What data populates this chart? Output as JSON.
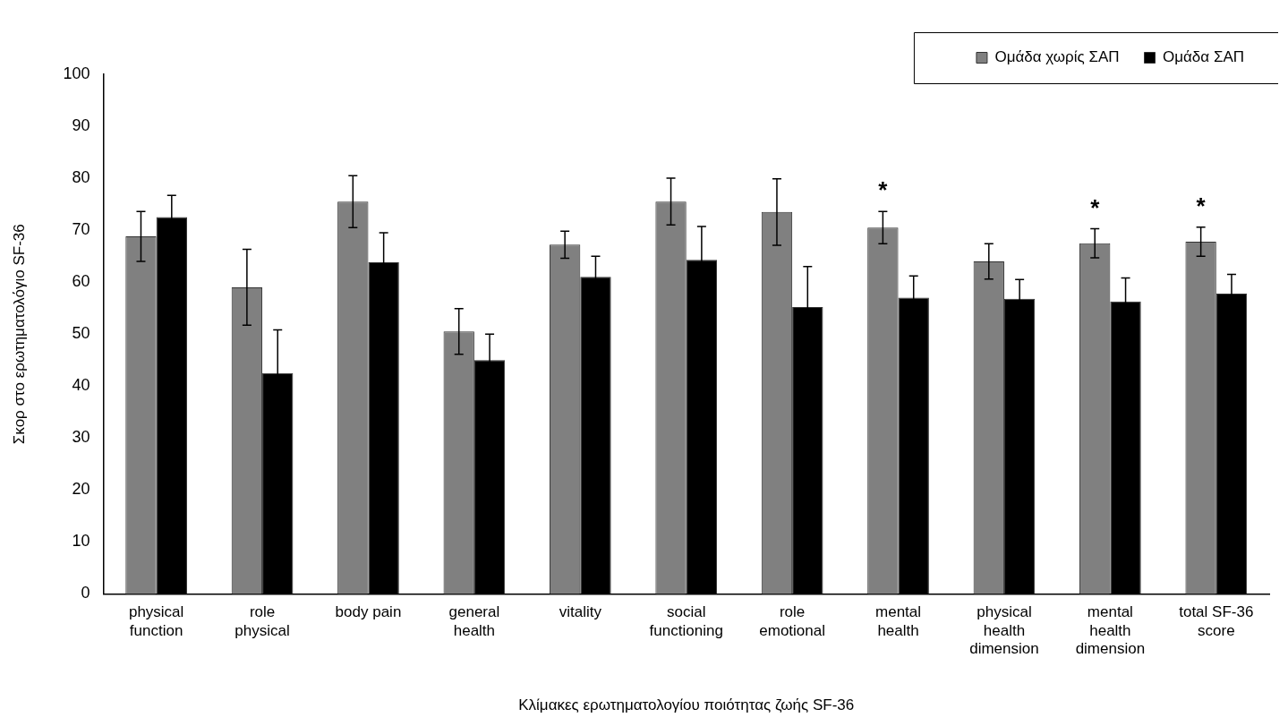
{
  "chart_data": {
    "type": "bar",
    "xlabel": "Κλίμακες ερωτηματολογίου ποιότητας ζωής SF-36",
    "ylabel": "Σκορ στο ερωτηματολόγιο SF-36",
    "categories": [
      "physical function",
      "role physical",
      "body pain",
      "general health",
      "vitality",
      "social functioning",
      "role emotional",
      "mental health",
      "physical health dimension",
      "mental health dimension",
      "total SF-36 score"
    ],
    "series": [
      {
        "name": "Ομάδα χωρίς ΣΑΠ",
        "color": "#808080",
        "values": [
          68.8,
          59,
          75.5,
          50.5,
          67.2,
          75.5,
          73.5,
          70.5,
          64,
          67.5,
          67.8
        ],
        "errors": [
          4.8,
          7.3,
          5,
          4.4,
          2.6,
          4.5,
          6.4,
          3.1,
          3.4,
          2.8,
          2.8
        ]
      },
      {
        "name": "Ομάδα ΣΑΠ",
        "color": "#000000",
        "values": [
          72.5,
          42.5,
          63.8,
          45,
          61,
          64.3,
          55.2,
          57,
          56.8,
          56.3,
          57.8
        ],
        "errors": [
          4.2,
          8.3,
          5.7,
          5,
          4,
          6.4,
          7.8,
          4.2,
          3.7,
          4.5,
          3.7
        ]
      }
    ],
    "annotations": [
      {
        "text": "*",
        "x": "mental health",
        "y": 70.5
      },
      {
        "text": "*",
        "x": "mental health dimension",
        "y": 67.5
      },
      {
        "text": "*",
        "x": "total SF-36 score",
        "y": 67.8
      }
    ],
    "ylim": [
      0,
      100
    ],
    "yticks": [
      0,
      10,
      20,
      30,
      40,
      50,
      60,
      70,
      80,
      90,
      100
    ],
    "grid": false,
    "legend": "top right"
  }
}
